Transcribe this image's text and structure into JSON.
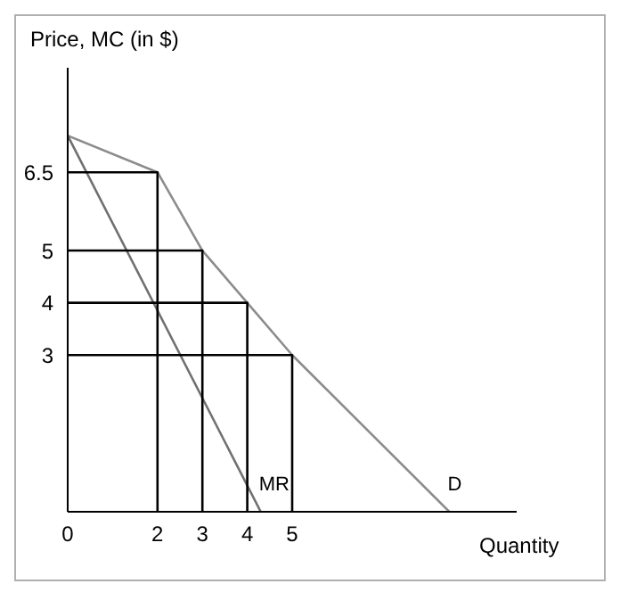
{
  "chart_data": {
    "type": "line",
    "ylabel": "Price, MC (in $)",
    "xlabel": "Quantity",
    "xlim": [
      0,
      10
    ],
    "ylim": [
      0,
      8.5
    ],
    "xticks": [
      0,
      2,
      3,
      4,
      5
    ],
    "yticks": [
      3,
      4,
      5,
      6.5
    ],
    "grid": false,
    "legend": false,
    "marker": "none",
    "line_style": "solid",
    "series": [
      {
        "name": "D",
        "color": "#8c8c8c",
        "x": [
          0,
          2,
          3,
          4,
          5,
          8.5
        ],
        "values": [
          7.2,
          6.5,
          5,
          4,
          3,
          0
        ]
      },
      {
        "name": "MR",
        "color": "#707070",
        "x": [
          0,
          4.3
        ],
        "values": [
          7.2,
          0
        ]
      },
      {
        "color": "#000000",
        "x": [
          0,
          2,
          2
        ],
        "values": [
          6.5,
          6.5,
          0
        ]
      },
      {
        "color": "#000000",
        "x": [
          0,
          3,
          3
        ],
        "values": [
          5,
          5,
          0
        ]
      },
      {
        "color": "#000000",
        "x": [
          0,
          4,
          4
        ],
        "values": [
          4,
          4,
          0
        ]
      },
      {
        "color": "#000000",
        "x": [
          0,
          5,
          5
        ],
        "values": [
          3,
          3,
          0
        ]
      }
    ]
  }
}
